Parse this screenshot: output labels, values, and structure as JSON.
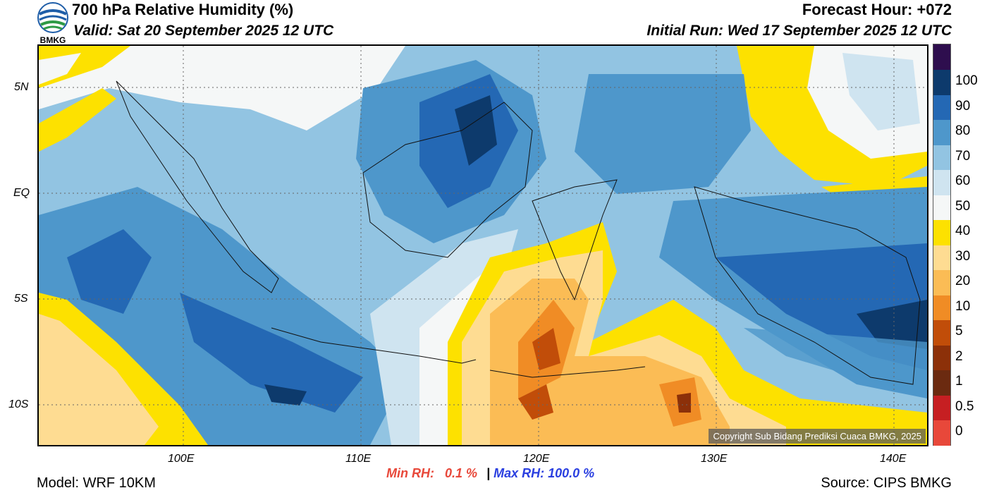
{
  "header": {
    "logo_text": "BMKG",
    "title": "700 hPa Relative Humidity (%)",
    "valid": "Valid: Sat 20 September 2025 12 UTC",
    "forecast_hour": "Forecast Hour: +072",
    "initial_run": "Initial Run: Wed 17 September 2025 12 UTC"
  },
  "map": {
    "lat_ticks": [
      "5N",
      "EQ",
      "5S",
      "10S"
    ],
    "lon_ticks": [
      "100E",
      "110E",
      "120E",
      "130E",
      "140E"
    ],
    "copyright": "Copyright Sub Bidang Prediksi Cuaca BMKG, 2025"
  },
  "colorbar": {
    "bins": [
      {
        "label": "0",
        "color": "#e8483a"
      },
      {
        "label": "0.5",
        "color": "#c61f22"
      },
      {
        "label": "1",
        "color": "#6b2a10"
      },
      {
        "label": "2",
        "color": "#8c3009"
      },
      {
        "label": "5",
        "color": "#c14d09"
      },
      {
        "label": "10",
        "color": "#f08c25"
      },
      {
        "label": "20",
        "color": "#fbbc55"
      },
      {
        "label": "30",
        "color": "#fedc92"
      },
      {
        "label": "40",
        "color": "#fde100"
      },
      {
        "label": "50",
        "color": "#f5f7f7"
      },
      {
        "label": "60",
        "color": "#cfe4f0"
      },
      {
        "label": "70",
        "color": "#92c4e2"
      },
      {
        "label": "80",
        "color": "#4e97cb"
      },
      {
        "label": "90",
        "color": "#2468b4"
      },
      {
        "label": "100",
        "color": "#0d3a6c"
      },
      {
        "label": "",
        "color": "#2e0e4e"
      }
    ]
  },
  "stats": {
    "min_label": "Min RH:",
    "min_value": "0.1 %",
    "separator": "|",
    "max_label": "Max RH:",
    "max_value": "100.0 %"
  },
  "footer": {
    "model": "Model: WRF 10KM",
    "source": "Source: CIPS BMKG"
  }
}
